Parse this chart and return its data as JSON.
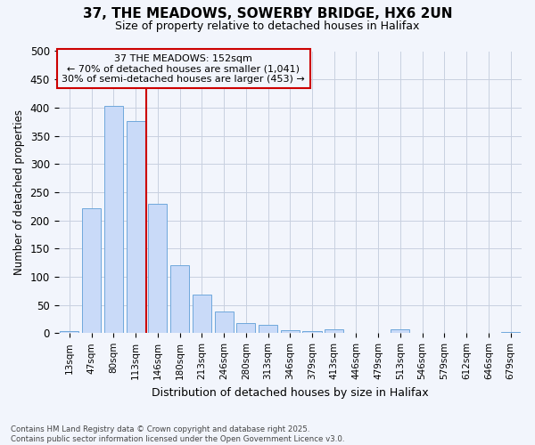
{
  "title_line1": "37, THE MEADOWS, SOWERBY BRIDGE, HX6 2UN",
  "title_line2": "Size of property relative to detached houses in Halifax",
  "xlabel": "Distribution of detached houses by size in Halifax",
  "ylabel": "Number of detached properties",
  "footer_line1": "Contains HM Land Registry data © Crown copyright and database right 2025.",
  "footer_line2": "Contains public sector information licensed under the Open Government Licence v3.0.",
  "categories": [
    "13sqm",
    "47sqm",
    "80sqm",
    "113sqm",
    "146sqm",
    "180sqm",
    "213sqm",
    "246sqm",
    "280sqm",
    "313sqm",
    "346sqm",
    "379sqm",
    "413sqm",
    "446sqm",
    "479sqm",
    "513sqm",
    "546sqm",
    "579sqm",
    "612sqm",
    "646sqm",
    "679sqm"
  ],
  "values": [
    3,
    222,
    403,
    376,
    230,
    120,
    68,
    38,
    18,
    14,
    6,
    4,
    7,
    1,
    1,
    7,
    1,
    1,
    1,
    1,
    2
  ],
  "bar_color": "#c9daf8",
  "bar_edge_color": "#6fa8dc",
  "grid_color": "#c8d0e0",
  "property_line_x": 3.5,
  "property_label": "37 THE MEADOWS: 152sqm",
  "annotation_line2": "← 70% of detached houses are smaller (1,041)",
  "annotation_line3": "30% of semi-detached houses are larger (453) →",
  "annotation_box_color": "#cc0000",
  "ylim": [
    0,
    500
  ],
  "background_color": "#f2f5fc"
}
